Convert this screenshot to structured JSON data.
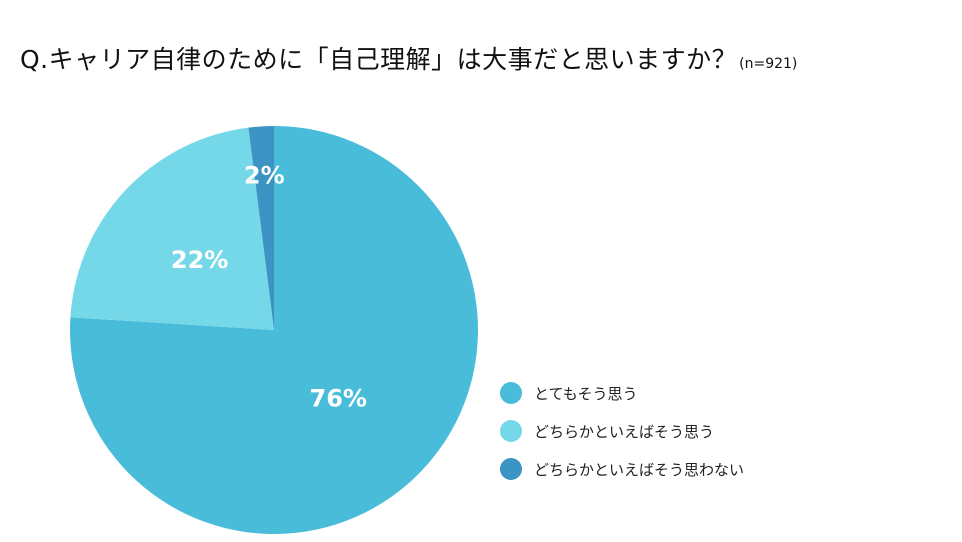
{
  "title": "Q.キャリア自律のために「自己理解」は大事だと思いますか？",
  "title_note": "(n=921)",
  "chart_data": {
    "type": "pie",
    "title": "Q.キャリア自律のために「自己理解」は大事だと思いますか？",
    "subtitle": "(n=921)",
    "unit": "%",
    "legend_position": "right",
    "slices": [
      {
        "label": "とてもそう思う",
        "value": 76,
        "display": "76%",
        "color": "#49BCDA"
      },
      {
        "label": "どちらかといえばそう思う",
        "value": 22,
        "display": "22%",
        "color": "#74D8E8"
      },
      {
        "label": "どちらかといえばそう思わない",
        "value": 2,
        "display": "2%",
        "color": "#3B94C4"
      }
    ]
  }
}
